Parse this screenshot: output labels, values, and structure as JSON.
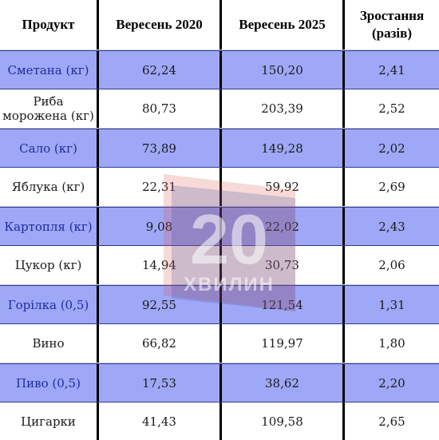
{
  "table": {
    "headers": [
      "Продукт",
      "Вересень 2020",
      "Вересень 2025",
      "Зростання (разів)"
    ],
    "rows": [
      {
        "product": "Сметана (кг)",
        "v2020": "62,24",
        "v2025": "150,20",
        "growth": "2,41"
      },
      {
        "product": "Риба морожена (кг)",
        "v2020": "80,73",
        "v2025": "203,39",
        "growth": "2,52"
      },
      {
        "product": "Сало (кг)",
        "v2020": "73,89",
        "v2025": "149,28",
        "growth": "2,02"
      },
      {
        "product": "Яблука (кг)",
        "v2020": "22,31",
        "v2025": "59,92",
        "growth": "2,69"
      },
      {
        "product": "Картопля (кг)",
        "v2020": "9,08",
        "v2025": "22,02",
        "growth": "2,43"
      },
      {
        "product": "Цукор (кг)",
        "v2020": "14,94",
        "v2025": "30,73",
        "growth": "2,06"
      },
      {
        "product": "Горілка (0,5)",
        "v2020": "92,55",
        "v2025": "121,54",
        "growth": "1,31"
      },
      {
        "product": "Вино",
        "v2020": "66,82",
        "v2025": "119,97",
        "growth": "1,80"
      },
      {
        "product": "Пиво (0,5)",
        "v2020": "17,53",
        "v2025": "38,62",
        "growth": "2,20"
      },
      {
        "product": "Цигарки",
        "v2020": "41,43",
        "v2025": "109,58",
        "growth": "2,65"
      }
    ]
  },
  "watermark": {
    "number": "20",
    "word": "ХВИЛИН"
  },
  "colors": {
    "shaded_row": "#9fa8f6",
    "accent_text": "#1f2b9e",
    "watermark_red": "#d9534f",
    "watermark_blue": "#3d4f9a"
  }
}
